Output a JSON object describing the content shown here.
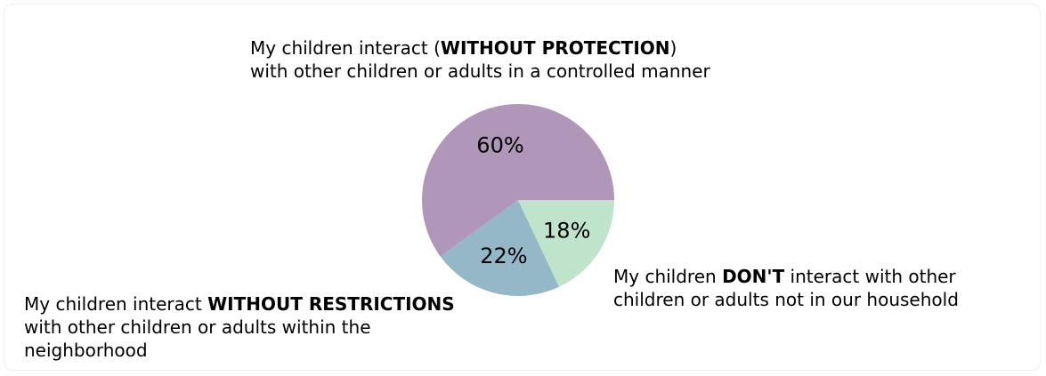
{
  "chart_data": {
    "type": "pie",
    "slices": [
      {
        "value": 60,
        "pct_label": "60%",
        "color": "#b096b9",
        "label_parts": [
          {
            "text": "My children interact (",
            "bold": false
          },
          {
            "text": "WITHOUT PROTECTION",
            "bold": true
          },
          {
            "text": ")",
            "bold": false
          },
          {
            "text": "\nwith other children or adults in a controlled manner",
            "bold": false
          }
        ]
      },
      {
        "value": 22,
        "pct_label": "22%",
        "color": "#95b8c8",
        "label_parts": [
          {
            "text": "My children interact ",
            "bold": false
          },
          {
            "text": "WITHOUT RESTRICTIONS",
            "bold": true
          },
          {
            "text": "\nwith other children or adults within the\nneighborhood",
            "bold": false
          }
        ]
      },
      {
        "value": 18,
        "pct_label": "18%",
        "color": "#c0e4cb",
        "label_parts": [
          {
            "text": "My children ",
            "bold": false
          },
          {
            "text": "DON'T",
            "bold": true
          },
          {
            "text": " interact with other\nchildren or adults not in our household",
            "bold": false
          }
        ]
      }
    ],
    "start_angle_deg": 0,
    "direction": "counterclockwise"
  }
}
